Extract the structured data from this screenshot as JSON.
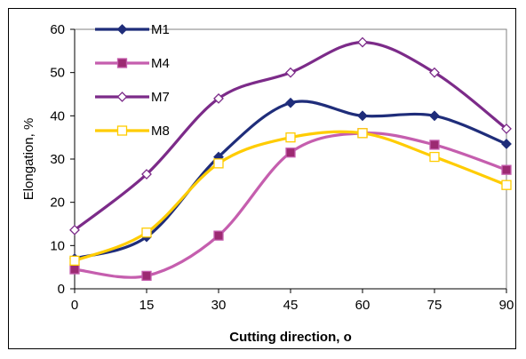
{
  "chart_data": {
    "type": "line",
    "xlabel": "Cutting direction, o",
    "ylabel": "Elongation, %",
    "x": [
      0,
      15,
      30,
      45,
      60,
      75,
      90
    ],
    "xticks": [
      "0",
      "15",
      "30",
      "45",
      "60",
      "75",
      "90"
    ],
    "yticks": [
      "0",
      "10",
      "20",
      "30",
      "40",
      "50",
      "60"
    ],
    "xlim": [
      0,
      90
    ],
    "ylim": [
      0,
      60
    ],
    "grid": false,
    "legend": "top-left, inside plot",
    "series": [
      {
        "name": "M1",
        "values": [
          7,
          12,
          30.5,
          43,
          40,
          40,
          33.5
        ],
        "color": "#1f2d7a",
        "marker": "diamond-filled"
      },
      {
        "name": "M4",
        "values": [
          4.5,
          3,
          12.3,
          31.5,
          36,
          33.3,
          27.5
        ],
        "color": "#c55eae",
        "fill": "#9c2a72",
        "marker": "square-filled"
      },
      {
        "name": "M7",
        "values": [
          13.6,
          26.5,
          44,
          50,
          57,
          50,
          37
        ],
        "color": "#7c2b89",
        "marker": "diamond-open"
      },
      {
        "name": "M8",
        "values": [
          6.5,
          13,
          29,
          35,
          36,
          30.5,
          24
        ],
        "color": "#ffcc00",
        "marker": "square-open"
      }
    ]
  }
}
